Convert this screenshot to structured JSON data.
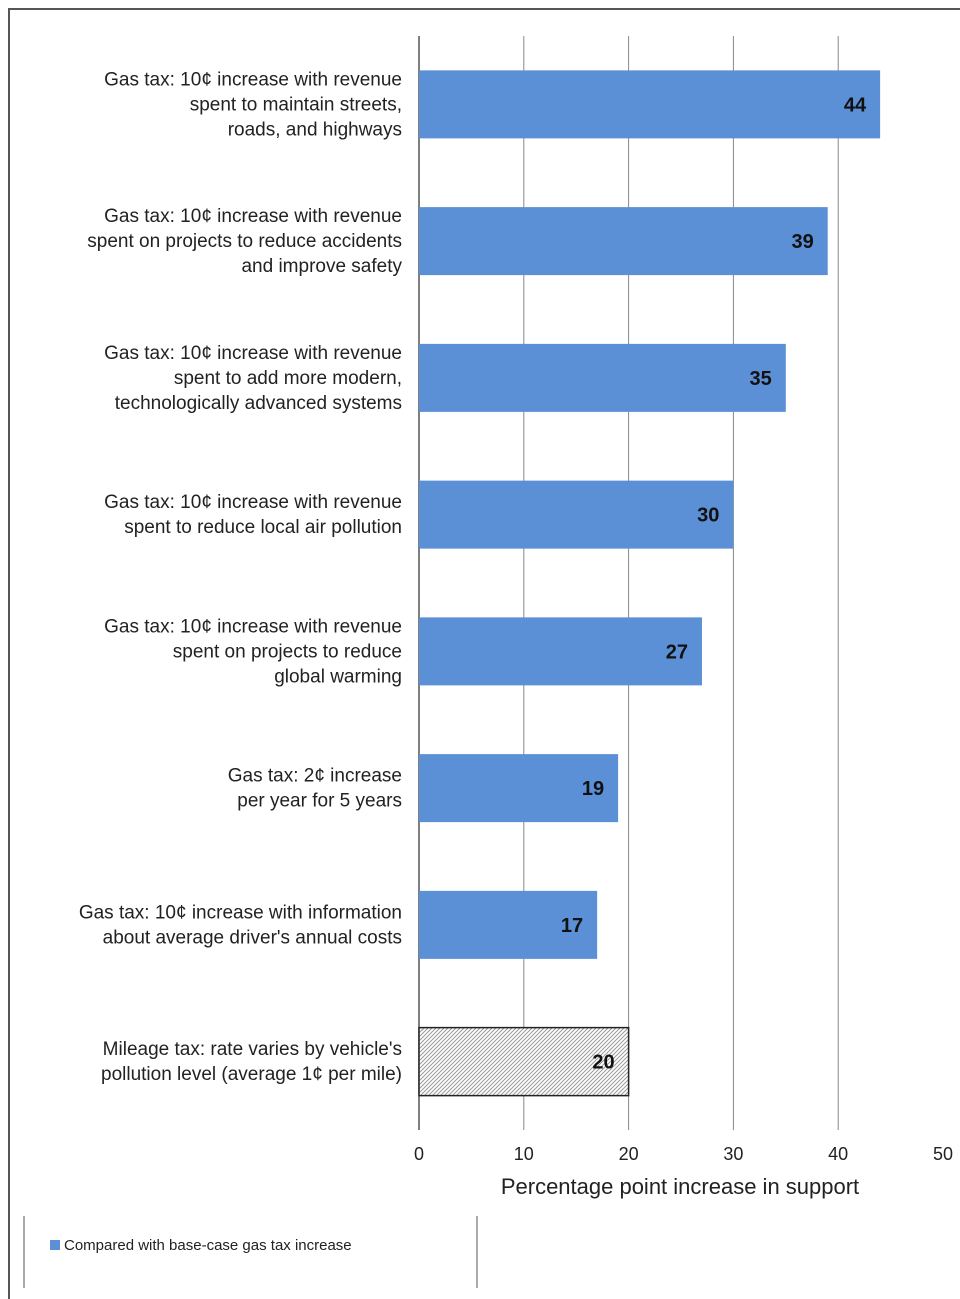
{
  "chart_data": {
    "type": "bar",
    "orientation": "horizontal",
    "categories": [
      [
        "Gas tax: 10¢ increase with revenue",
        "spent to maintain streets,",
        "roads, and highways"
      ],
      [
        "Gas tax: 10¢ increase with revenue",
        "spent on projects to reduce accidents",
        "and improve safety"
      ],
      [
        "Gas tax: 10¢ increase with revenue",
        "spent to add more modern,",
        "technologically advanced systems"
      ],
      [
        "Gas tax: 10¢ increase with revenue",
        "spent  to reduce local air pollution"
      ],
      [
        "Gas tax: 10¢ increase with revenue",
        "spent on projects to reduce",
        "global warming"
      ],
      [
        "Gas tax: 2¢ increase",
        "per year for 5 years"
      ],
      [
        "Gas tax: 10¢ increase with information",
        "about average driver's annual costs"
      ],
      [
        "Mileage tax: rate varies by vehicle's",
        "pollution level (average 1¢ per mile)"
      ]
    ],
    "values": [
      44,
      39,
      35,
      30,
      27,
      19,
      17,
      20
    ],
    "bar_styles": [
      "solid",
      "solid",
      "solid",
      "solid",
      "solid",
      "solid",
      "solid",
      "hatched"
    ],
    "xlabel": "Percentage point increase in support",
    "xlim": [
      0,
      50
    ],
    "xticks": [
      "0",
      "10",
      "20",
      "30",
      "40",
      "50"
    ],
    "grid": "vertical",
    "legend_position": "bottom-left",
    "series": [
      {
        "name": "Compared with base-case gas tax increase",
        "color": "#5b8fd6"
      }
    ],
    "colors": {
      "bar": "#5b8fd6",
      "hatch": "#9a9a9a",
      "grid": "#888888"
    }
  }
}
